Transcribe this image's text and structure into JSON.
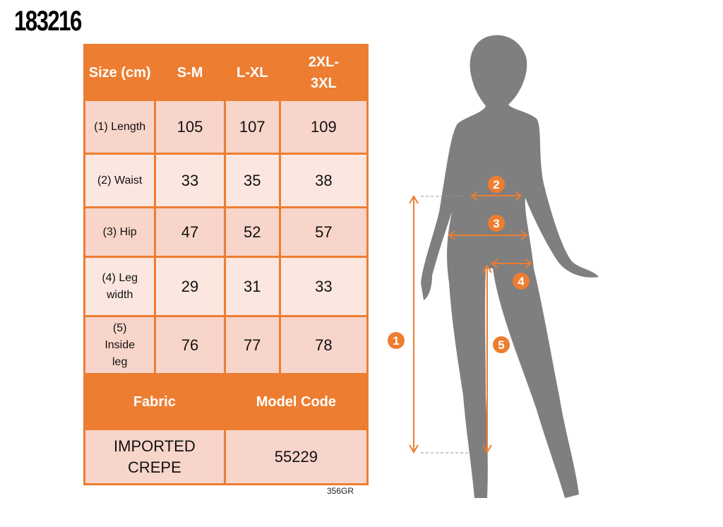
{
  "product_code": "183216",
  "table": {
    "header": [
      "Size (cm)",
      "S-M",
      "L-XL",
      "2XL-3XL"
    ],
    "rows": [
      {
        "label": "(1) Length",
        "values": [
          "105",
          "107",
          "109"
        ]
      },
      {
        "label": "(2) Waist",
        "values": [
          "33",
          "35",
          "38"
        ]
      },
      {
        "label": "(3) Hip",
        "values": [
          "47",
          "52",
          "57"
        ]
      },
      {
        "label": "(4) Leg width",
        "values": [
          "29",
          "31",
          "33"
        ]
      },
      {
        "label": "(5) Inside leg",
        "values": [
          "76",
          "77",
          "78"
        ]
      }
    ],
    "fabric_label": "Fabric",
    "model_code_label": "Model Code",
    "fabric_value": "IMPORTED CREPE",
    "model_code_value": "55229"
  },
  "model_ref": "356GR",
  "markers": [
    "1",
    "2",
    "3",
    "4",
    "5"
  ],
  "colors": {
    "accent": "#ed7d31",
    "silhouette": "#7f7f7f"
  }
}
